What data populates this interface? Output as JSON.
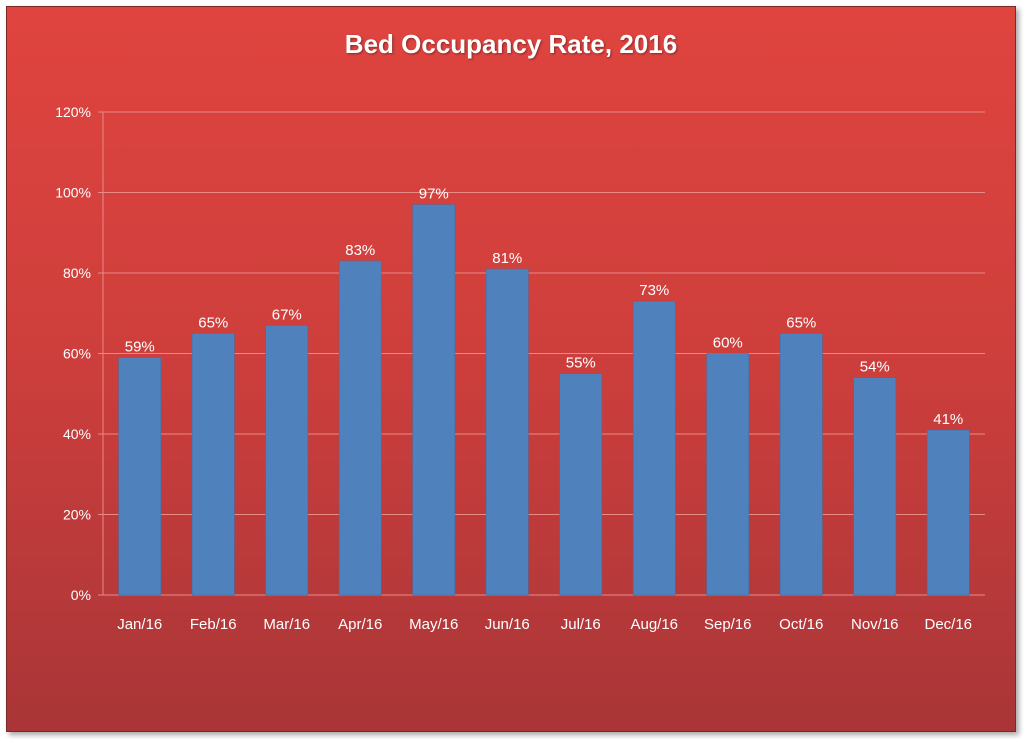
{
  "chart_data": {
    "type": "bar",
    "title": "Bed Occupancy Rate, 2016",
    "xlabel": "",
    "ylabel": "",
    "categories": [
      "Jan/16",
      "Feb/16",
      "Mar/16",
      "Apr/16",
      "May/16",
      "Jun/16",
      "Jul/16",
      "Aug/16",
      "Sep/16",
      "Oct/16",
      "Nov/16",
      "Dec/16"
    ],
    "values": [
      59,
      65,
      67,
      83,
      97,
      81,
      55,
      73,
      60,
      65,
      54,
      41
    ],
    "value_labels": [
      "59%",
      "65%",
      "67%",
      "83%",
      "97%",
      "81%",
      "55%",
      "73%",
      "60%",
      "65%",
      "54%",
      "41%"
    ],
    "ylim": [
      0,
      120
    ],
    "yticks": [
      0,
      20,
      40,
      60,
      80,
      100,
      120
    ],
    "ytick_labels": [
      "0%",
      "20%",
      "40%",
      "60%",
      "80%",
      "100%",
      "120%"
    ],
    "grid": true,
    "legend": "none",
    "colors": {
      "bar": "#4f81bd",
      "background_top": "#e0443f",
      "background_bottom": "#a93536",
      "gridline": "#e88a86",
      "text": "#ffffff"
    }
  }
}
